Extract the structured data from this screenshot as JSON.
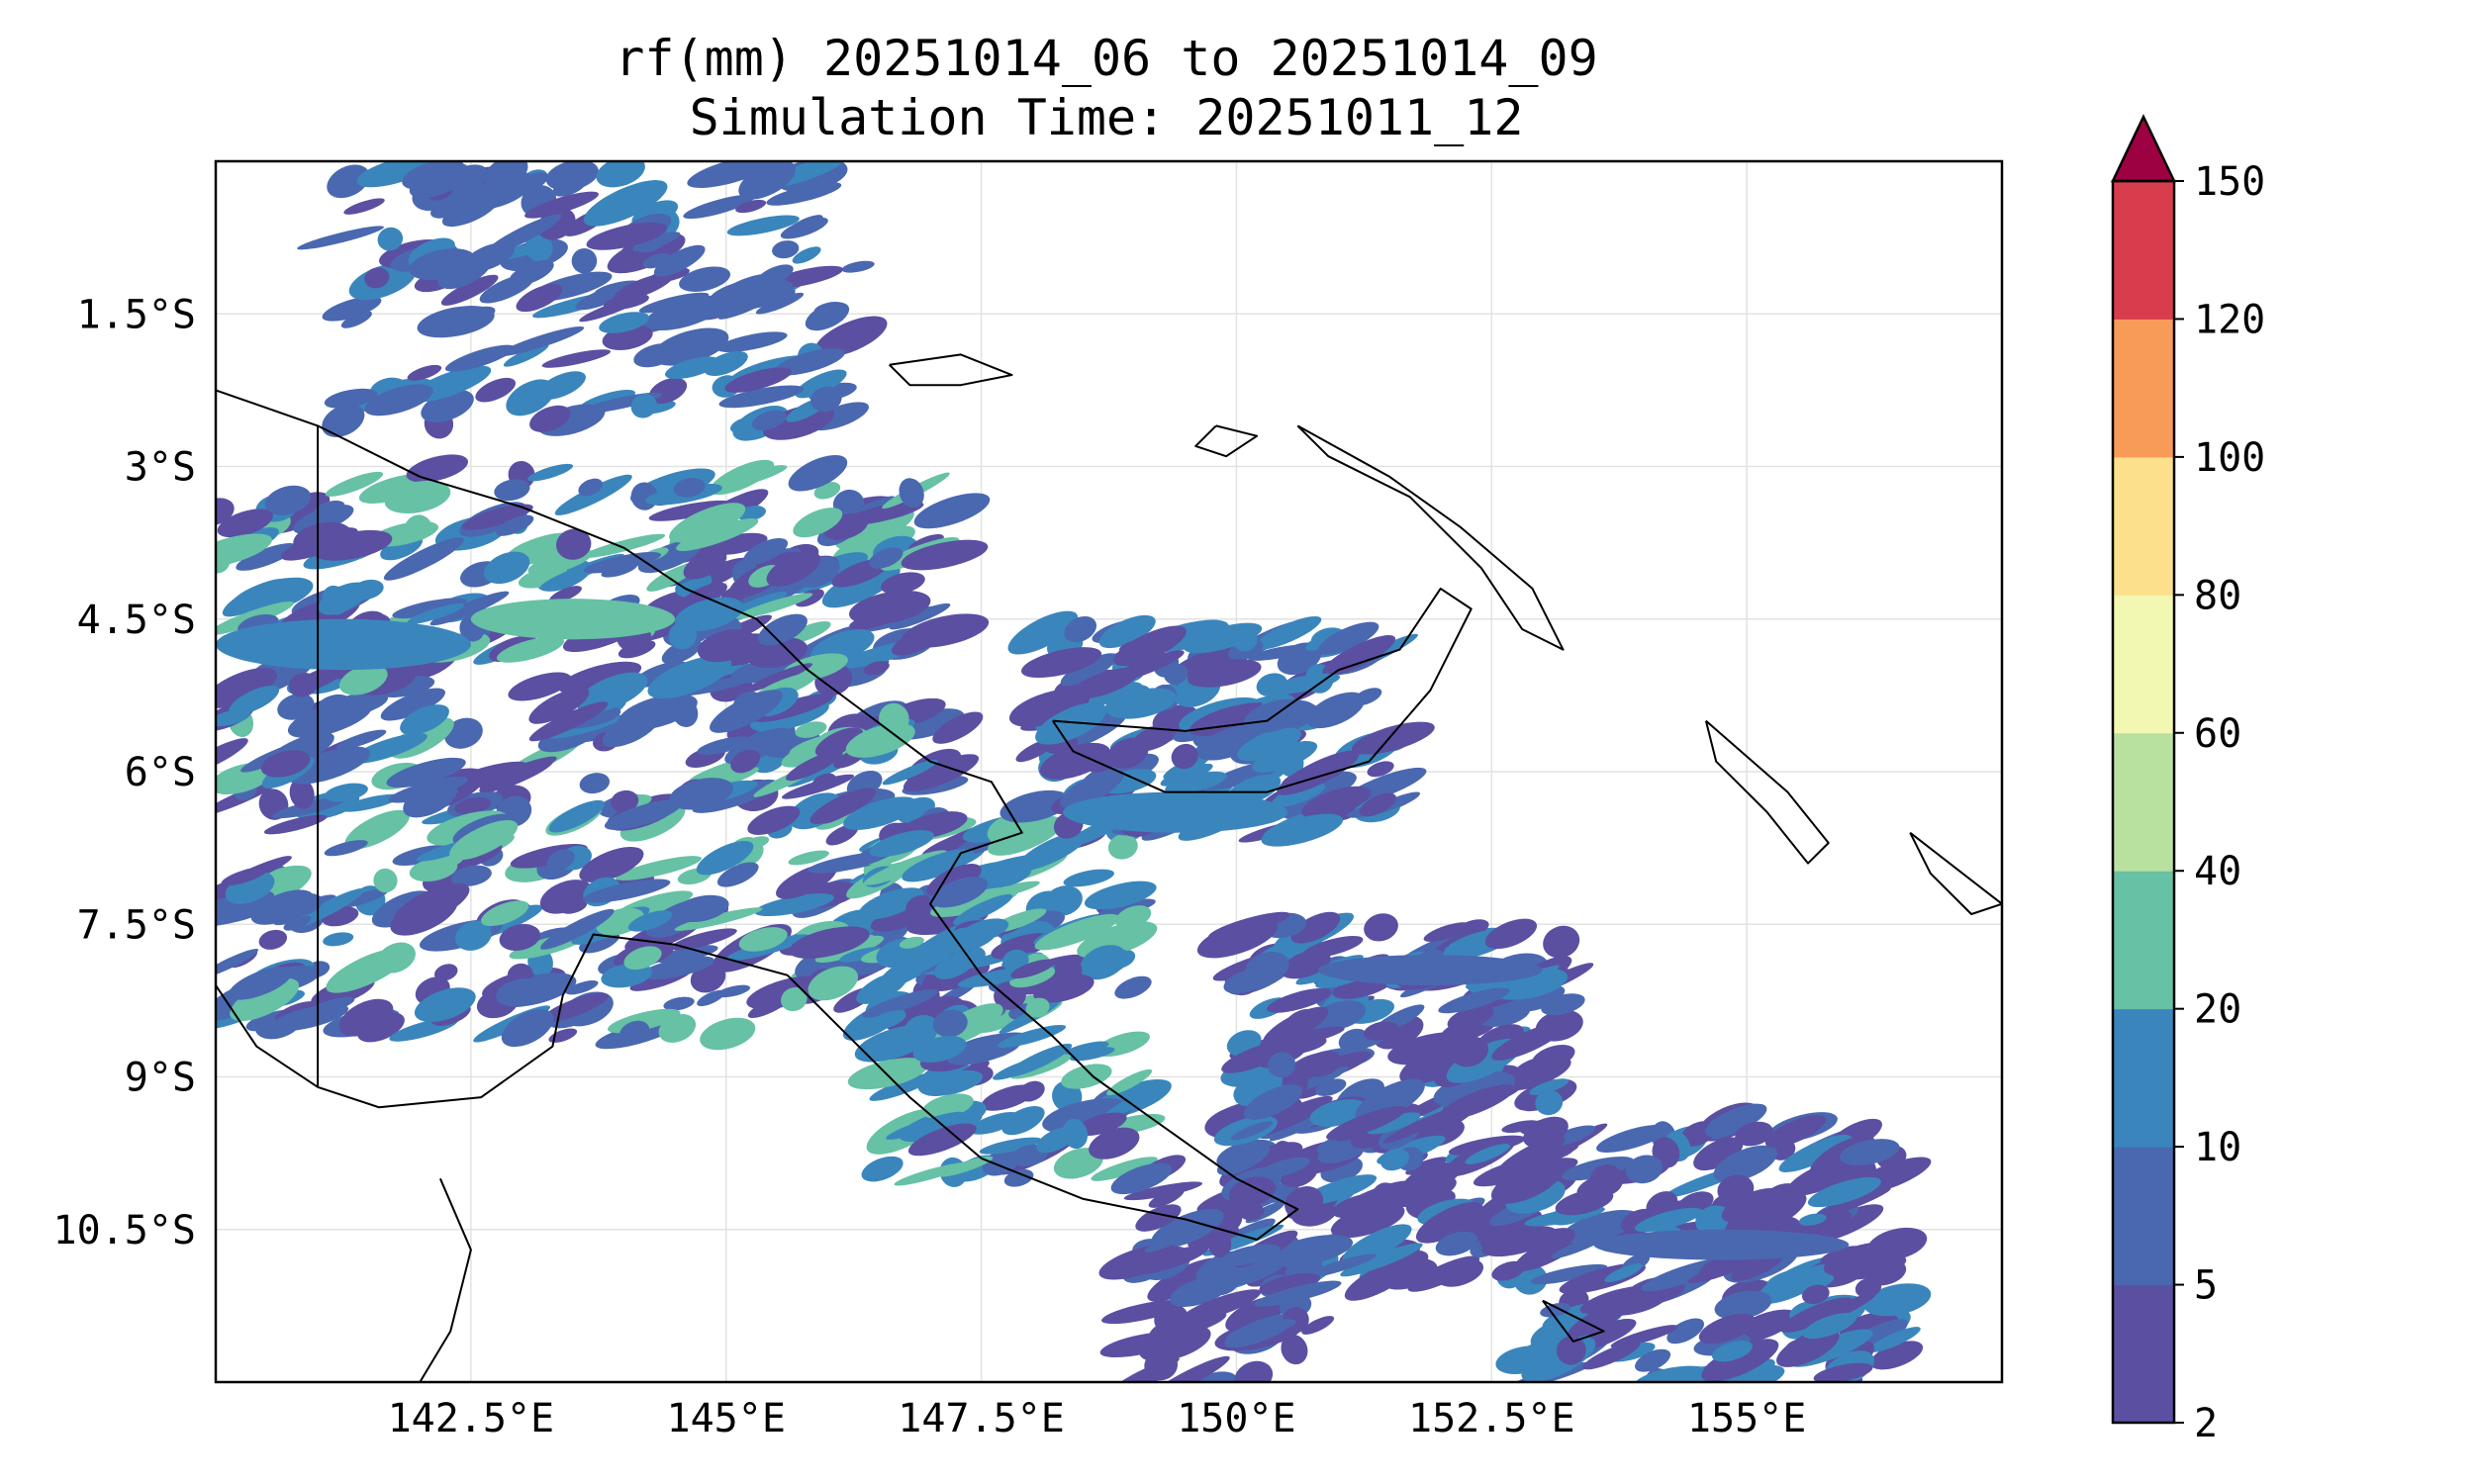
{
  "title": {
    "line1": "rf(mm) 20251014_06 to 20251014_09",
    "line2": "Simulation Time: 20251011_12"
  },
  "map": {
    "lon_range": [
      140.0,
      157.5
    ],
    "lat_range": [
      -12.0,
      0.0
    ],
    "lon_ticks": [
      {
        "value": 142.5,
        "label": "142.5°E"
      },
      {
        "value": 145.0,
        "label": "145°E"
      },
      {
        "value": 147.5,
        "label": "147.5°E"
      },
      {
        "value": 150.0,
        "label": "150°E"
      },
      {
        "value": 152.5,
        "label": "152.5°E"
      },
      {
        "value": 155.0,
        "label": "155°E"
      }
    ],
    "lat_ticks": [
      {
        "value": -1.5,
        "label": "1.5°S"
      },
      {
        "value": -3.0,
        "label": "3°S"
      },
      {
        "value": -4.5,
        "label": "4.5°S"
      },
      {
        "value": -6.0,
        "label": "6°S"
      },
      {
        "value": -7.5,
        "label": "7.5°S"
      },
      {
        "value": -9.0,
        "label": "9°S"
      },
      {
        "value": -10.5,
        "label": "10.5°S"
      }
    ],
    "grid": true,
    "coastline": [
      [
        [
          140.0,
          -2.25
        ],
        [
          141.0,
          -2.6
        ],
        [
          142.0,
          -3.1
        ],
        [
          143.0,
          -3.4
        ],
        [
          144.0,
          -3.8
        ],
        [
          144.6,
          -4.2
        ],
        [
          145.3,
          -4.5
        ],
        [
          145.8,
          -5.0
        ],
        [
          146.2,
          -5.3
        ],
        [
          147.0,
          -5.9
        ],
        [
          147.6,
          -6.1
        ],
        [
          147.9,
          -6.6
        ],
        [
          147.3,
          -6.8
        ],
        [
          147.0,
          -7.3
        ],
        [
          147.5,
          -8.0
        ],
        [
          148.2,
          -8.6
        ],
        [
          148.6,
          -9.0
        ],
        [
          149.3,
          -9.5
        ],
        [
          150.0,
          -10.0
        ],
        [
          150.6,
          -10.3
        ],
        [
          150.2,
          -10.6
        ],
        [
          149.5,
          -10.4
        ],
        [
          148.5,
          -10.2
        ],
        [
          147.5,
          -9.8
        ],
        [
          146.8,
          -9.2
        ],
        [
          146.3,
          -8.7
        ],
        [
          145.6,
          -8.0
        ],
        [
          144.5,
          -7.7
        ],
        [
          143.7,
          -7.6
        ],
        [
          143.4,
          -8.2
        ],
        [
          143.3,
          -8.7
        ],
        [
          142.6,
          -9.2
        ],
        [
          141.6,
          -9.3
        ],
        [
          141.0,
          -9.1
        ],
        [
          140.4,
          -8.7
        ],
        [
          140.0,
          -8.1
        ]
      ],
      [
        [
          141.0,
          -2.6
        ],
        [
          141.0,
          -9.1
        ]
      ],
      [
        [
          148.2,
          -5.5
        ],
        [
          149.5,
          -5.6
        ],
        [
          150.3,
          -5.5
        ],
        [
          151.0,
          -5.0
        ],
        [
          151.6,
          -4.8
        ],
        [
          152.0,
          -4.2
        ],
        [
          152.3,
          -4.4
        ],
        [
          151.9,
          -5.2
        ],
        [
          151.3,
          -5.9
        ],
        [
          150.3,
          -6.2
        ],
        [
          149.3,
          -6.2
        ],
        [
          148.4,
          -5.8
        ],
        [
          148.2,
          -5.5
        ]
      ],
      [
        [
          150.6,
          -2.6
        ],
        [
          151.5,
          -3.1
        ],
        [
          152.2,
          -3.6
        ],
        [
          152.9,
          -4.2
        ],
        [
          153.2,
          -4.8
        ],
        [
          152.8,
          -4.6
        ],
        [
          152.4,
          -4.0
        ],
        [
          151.7,
          -3.3
        ],
        [
          150.9,
          -2.9
        ],
        [
          150.6,
          -2.6
        ]
      ],
      [
        [
          146.6,
          -2.0
        ],
        [
          147.3,
          -1.9
        ],
        [
          147.8,
          -2.1
        ],
        [
          147.3,
          -2.2
        ],
        [
          146.8,
          -2.2
        ],
        [
          146.6,
          -2.0
        ]
      ],
      [
        [
          149.8,
          -2.6
        ],
        [
          150.2,
          -2.7
        ],
        [
          149.9,
          -2.9
        ],
        [
          149.6,
          -2.8
        ],
        [
          149.8,
          -2.6
        ]
      ],
      [
        [
          154.6,
          -5.5
        ],
        [
          155.4,
          -6.2
        ],
        [
          155.8,
          -6.7
        ],
        [
          155.6,
          -6.9
        ],
        [
          155.2,
          -6.4
        ],
        [
          154.7,
          -5.9
        ],
        [
          154.6,
          -5.5
        ]
      ],
      [
        [
          156.6,
          -6.6
        ],
        [
          157.5,
          -7.3
        ],
        [
          157.2,
          -7.4
        ],
        [
          156.8,
          -7.0
        ],
        [
          156.6,
          -6.6
        ]
      ],
      [
        [
          142.2,
          -10.0
        ],
        [
          142.5,
          -10.7
        ],
        [
          142.3,
          -11.5
        ],
        [
          142.0,
          -12.0
        ]
      ],
      [
        [
          153.0,
          -11.2
        ],
        [
          153.6,
          -11.5
        ],
        [
          153.3,
          -11.6
        ],
        [
          153.0,
          -11.2
        ]
      ]
    ]
  },
  "rainfall": {
    "units": "mm",
    "levels": [
      2,
      5,
      10,
      20,
      40,
      60,
      80,
      100,
      120,
      150
    ],
    "colors": [
      "#5b4fa2",
      "#4a68b0",
      "#3a86bc",
      "#66c1a5",
      "#b8e1a0",
      "#f2f7b1",
      "#fde08b",
      "#f89a58",
      "#d83d4d"
    ],
    "extend_color": "#9e0142",
    "bands": [
      {
        "lon": [
          140.0,
          142.5
        ],
        "lat": [
          -5.0,
          -4.5
        ],
        "level": 2
      },
      {
        "lon": [
          142.5,
          144.5
        ],
        "lat": [
          -4.7,
          -4.3
        ],
        "level": 3
      },
      {
        "lon": [
          148.3,
          150.5
        ],
        "lat": [
          -6.6,
          -6.2
        ],
        "level": 2
      },
      {
        "lon": [
          150.8,
          153.0
        ],
        "lat": [
          -8.1,
          -7.8
        ],
        "level": 1
      },
      {
        "lon": [
          153.5,
          156.0
        ],
        "lat": [
          -10.8,
          -10.5
        ],
        "level": 1
      }
    ]
  },
  "colorbar": {
    "tick_labels": [
      "2",
      "5",
      "10",
      "20",
      "40",
      "60",
      "80",
      "100",
      "120",
      "150"
    ]
  }
}
